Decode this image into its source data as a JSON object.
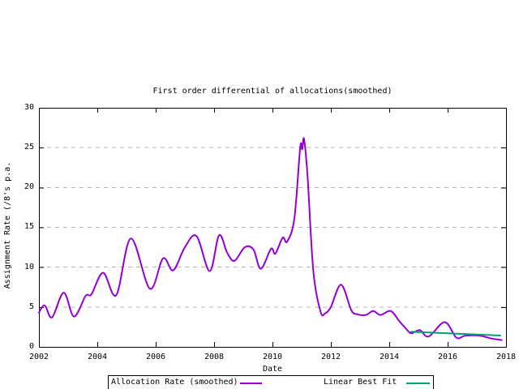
{
  "title": "First order differential of allocations(smoothed)",
  "axes": {
    "xlabel": "Date",
    "ylabel": "Assignment Rate (/8's p.a.",
    "xticks": [
      "2002",
      "2004",
      "2006",
      "2008",
      "2010",
      "2012",
      "2014",
      "2016",
      "2018"
    ],
    "yticks": [
      "0",
      "5",
      "10",
      "15",
      "20",
      "25",
      "30"
    ]
  },
  "legend": {
    "items": [
      {
        "label": "Allocation Rate (smoothed)",
        "color": "#9400d3"
      },
      {
        "label": "Linear Best Fit",
        "color": "#009e73"
      }
    ]
  },
  "colors": {
    "background": "#ffffff",
    "frame": "#000000",
    "grid": "#b4b4b4",
    "series1": "#9400d3",
    "series2": "#009e73"
  },
  "chart_data": {
    "type": "line",
    "title": "First order differential of allocations(smoothed)",
    "xlabel": "Date",
    "ylabel": "Assignment Rate (/8's p.a.",
    "xlim": [
      2002,
      2018
    ],
    "ylim": [
      0,
      30
    ],
    "grid": "horizontal dashed lines at y = 5,10,15,20,25",
    "legend_position": "boxed legend below x-axis, partially cut off at bottom edge",
    "series": [
      {
        "name": "Allocation Rate (smoothed)",
        "color": "#9400d3",
        "smooth": true,
        "points": [
          [
            2002.0,
            4.3
          ],
          [
            2002.2,
            5.2
          ],
          [
            2002.45,
            3.7
          ],
          [
            2002.85,
            6.8
          ],
          [
            2003.2,
            3.8
          ],
          [
            2003.6,
            6.4
          ],
          [
            2003.8,
            6.6
          ],
          [
            2004.2,
            9.3
          ],
          [
            2004.65,
            6.5
          ],
          [
            2005.15,
            13.6
          ],
          [
            2005.8,
            7.3
          ],
          [
            2006.25,
            11.1
          ],
          [
            2006.6,
            9.6
          ],
          [
            2007.0,
            12.5
          ],
          [
            2007.4,
            13.9
          ],
          [
            2007.85,
            9.5
          ],
          [
            2008.17,
            14.0
          ],
          [
            2008.45,
            11.8
          ],
          [
            2008.7,
            10.8
          ],
          [
            2009.05,
            12.5
          ],
          [
            2009.35,
            12.2
          ],
          [
            2009.6,
            9.8
          ],
          [
            2009.95,
            12.3
          ],
          [
            2010.1,
            11.7
          ],
          [
            2010.35,
            13.7
          ],
          [
            2010.5,
            13.2
          ],
          [
            2010.75,
            16.1
          ],
          [
            2010.95,
            25.0
          ],
          [
            2011.02,
            24.8
          ],
          [
            2011.08,
            26.1
          ],
          [
            2011.2,
            21.5
          ],
          [
            2011.4,
            9.5
          ],
          [
            2011.65,
            4.4
          ],
          [
            2011.8,
            4.2
          ],
          [
            2012.0,
            5.0
          ],
          [
            2012.35,
            7.8
          ],
          [
            2012.7,
            4.6
          ],
          [
            2012.9,
            4.1
          ],
          [
            2013.2,
            4.0
          ],
          [
            2013.45,
            4.5
          ],
          [
            2013.7,
            4.0
          ],
          [
            2014.05,
            4.5
          ],
          [
            2014.35,
            3.2
          ],
          [
            2014.55,
            2.4
          ],
          [
            2014.75,
            1.7
          ],
          [
            2015.05,
            2.1
          ],
          [
            2015.35,
            1.3
          ],
          [
            2015.9,
            3.1
          ],
          [
            2016.3,
            1.15
          ],
          [
            2016.6,
            1.4
          ],
          [
            2017.1,
            1.4
          ],
          [
            2017.5,
            1.05
          ],
          [
            2017.85,
            0.85
          ]
        ]
      },
      {
        "name": "Linear Best Fit",
        "color": "#009e73",
        "smooth": false,
        "points": [
          [
            2014.75,
            1.9
          ],
          [
            2017.8,
            1.42
          ]
        ]
      }
    ]
  }
}
